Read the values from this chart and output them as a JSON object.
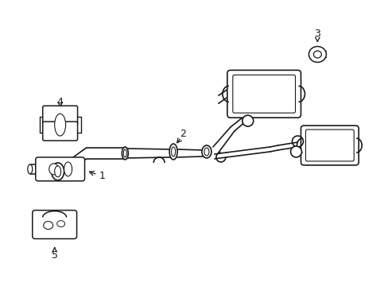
{
  "background_color": "#ffffff",
  "line_color": "#1a1a1a",
  "lw": 1.0,
  "fig_width": 4.89,
  "fig_height": 3.6,
  "dpi": 100
}
